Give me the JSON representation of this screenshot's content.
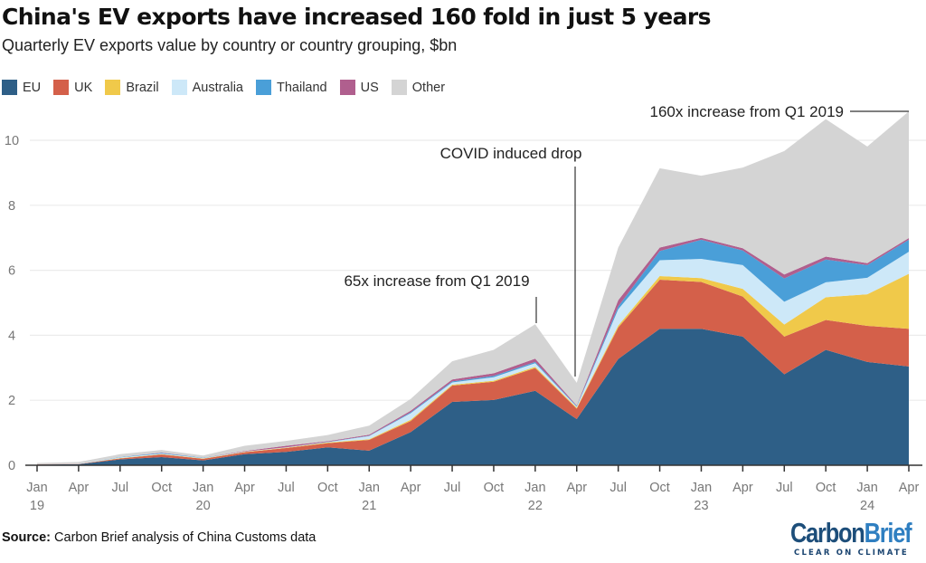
{
  "chart_data": {
    "type": "area",
    "stacked": true,
    "title": "China's EV exports have increased 160 fold in just 5 years",
    "subtitle": "Quarterly EV exports value by country or country grouping, $bn",
    "categories": [
      "Jan 19",
      "Apr 19",
      "Jul 19",
      "Oct 19",
      "Jan 20",
      "Apr 20",
      "Jul 20",
      "Oct 20",
      "Jan 21",
      "Apr 21",
      "Jul 21",
      "Oct 21",
      "Jan 22",
      "Apr 22",
      "Jul 22",
      "Oct 22",
      "Jan 23",
      "Apr 23",
      "Jul 23",
      "Oct 23",
      "Jan 24",
      "Apr 24"
    ],
    "x_tick_labels": [
      {
        "m": "Jan",
        "y": "19"
      },
      {
        "m": "Apr",
        "y": ""
      },
      {
        "m": "Jul",
        "y": ""
      },
      {
        "m": "Oct",
        "y": ""
      },
      {
        "m": "Jan",
        "y": "20"
      },
      {
        "m": "Apr",
        "y": ""
      },
      {
        "m": "Jul",
        "y": ""
      },
      {
        "m": "Oct",
        "y": ""
      },
      {
        "m": "Jan",
        "y": "21"
      },
      {
        "m": "Apr",
        "y": ""
      },
      {
        "m": "Jul",
        "y": ""
      },
      {
        "m": "Oct",
        "y": ""
      },
      {
        "m": "Jan",
        "y": "22"
      },
      {
        "m": "Apr",
        "y": ""
      },
      {
        "m": "Jul",
        "y": ""
      },
      {
        "m": "Oct",
        "y": ""
      },
      {
        "m": "Jan",
        "y": "23"
      },
      {
        "m": "Apr",
        "y": ""
      },
      {
        "m": "Jul",
        "y": ""
      },
      {
        "m": "Oct",
        "y": ""
      },
      {
        "m": "Jan",
        "y": "24"
      },
      {
        "m": "Apr",
        "y": ""
      }
    ],
    "ylim": [
      0,
      11
    ],
    "y_ticks": [
      0,
      2,
      4,
      6,
      8,
      10
    ],
    "grid": true,
    "legend_position": "top-left",
    "series": [
      {
        "name": "EU",
        "color": "#2e5f87",
        "values": [
          0.02,
          0.03,
          0.18,
          0.25,
          0.15,
          0.34,
          0.41,
          0.55,
          0.45,
          1.02,
          1.95,
          2.01,
          2.29,
          1.42,
          3.27,
          4.2,
          4.2,
          3.96,
          2.8,
          3.55,
          3.18,
          3.04
        ]
      },
      {
        "name": "UK",
        "color": "#d4604a",
        "values": [
          0.01,
          0.01,
          0.03,
          0.08,
          0.05,
          0.06,
          0.12,
          0.13,
          0.33,
          0.34,
          0.5,
          0.56,
          0.7,
          0.32,
          0.97,
          1.51,
          1.44,
          1.23,
          1.16,
          0.92,
          1.11,
          1.16
        ]
      },
      {
        "name": "Brazil",
        "color": "#f0c94a",
        "values": [
          0,
          0,
          0.01,
          0.01,
          0.01,
          0.01,
          0.01,
          0.02,
          0.02,
          0.04,
          0.03,
          0.03,
          0.04,
          0.03,
          0.06,
          0.11,
          0.12,
          0.24,
          0.37,
          0.7,
          0.97,
          1.69
        ]
      },
      {
        "name": "Australia",
        "color": "#cde8f8",
        "values": [
          0,
          0.01,
          0.02,
          0.02,
          0.01,
          0.01,
          0.01,
          0.01,
          0.1,
          0.2,
          0.07,
          0.11,
          0.11,
          0.03,
          0.5,
          0.49,
          0.59,
          0.73,
          0.7,
          0.46,
          0.51,
          0.68
        ]
      },
      {
        "name": "Thailand",
        "color": "#4a9fd8",
        "values": [
          0,
          0,
          0.01,
          0.02,
          0.01,
          0,
          0,
          0.01,
          0.01,
          0.03,
          0.03,
          0.04,
          0.04,
          0.02,
          0.09,
          0.28,
          0.59,
          0.45,
          0.72,
          0.7,
          0.39,
          0.37
        ]
      },
      {
        "name": "US",
        "color": "#b05f8e",
        "values": [
          0,
          0,
          0,
          0.01,
          0,
          0.02,
          0.05,
          0.02,
          0.03,
          0.05,
          0.06,
          0.08,
          0.1,
          0.02,
          0.19,
          0.11,
          0.06,
          0.07,
          0.12,
          0.09,
          0.06,
          0.05
        ]
      },
      {
        "name": "Other",
        "color": "#d4d4d4",
        "values": [
          0.04,
          0.05,
          0.09,
          0.08,
          0.07,
          0.16,
          0.15,
          0.19,
          0.28,
          0.36,
          0.56,
          0.72,
          1.06,
          0.7,
          1.62,
          2.44,
          1.91,
          2.48,
          3.8,
          4.23,
          3.59,
          3.9
        ]
      }
    ],
    "annotations": [
      {
        "text": "65x increase from Q1 2019",
        "at": "Jan 22"
      },
      {
        "text": "COVID induced drop",
        "at": "Apr 22"
      },
      {
        "text": "160x increase from Q1 2019",
        "at": "Apr 24"
      }
    ]
  },
  "source": {
    "label": "Source:",
    "text": " Carbon Brief analysis of China Customs data"
  },
  "logo": {
    "text_carbon": "Carbon",
    "text_brief": "Brief",
    "tagline": "CLEAR ON CLIMATE",
    "color_dark": "#1d4e7a",
    "color_light": "#2f7fc1"
  }
}
